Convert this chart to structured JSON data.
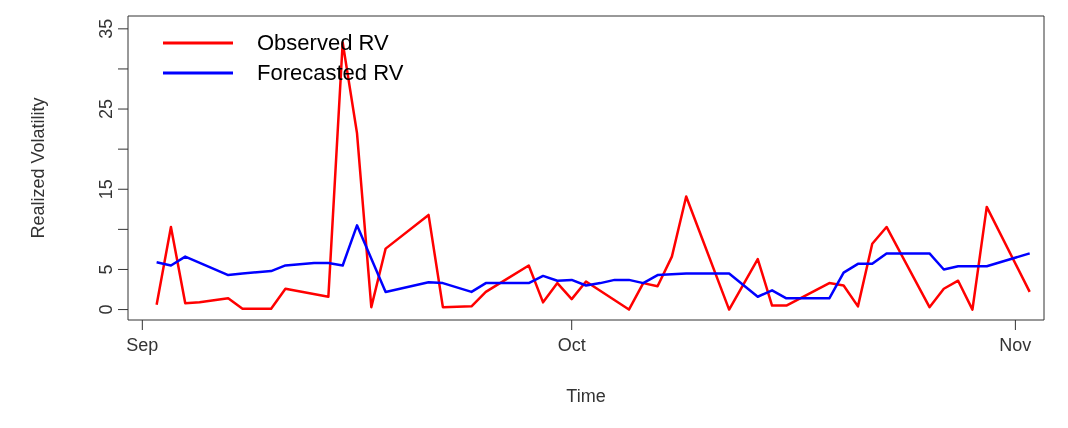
{
  "chart_data": {
    "type": "line",
    "xlabel": "Time",
    "ylabel": "Realized Volatility",
    "xlim": [
      "--08-31",
      "--11-03"
    ],
    "xticks": [
      {
        "value": "--09-01",
        "label": "Sep"
      },
      {
        "value": "--10-01",
        "label": "Oct"
      },
      {
        "value": "--11-01",
        "label": "Nov"
      }
    ],
    "ylim": [
      -1.3,
      36.6
    ],
    "yticks": [
      0,
      5,
      {
        "value": 10,
        "label": null
      },
      15,
      {
        "value": 20,
        "label": null
      },
      25,
      {
        "value": 30,
        "label": null
      },
      35
    ],
    "legend": "top left",
    "grid": false,
    "line_style": "solid",
    "series": [
      {
        "name": "Observed RV",
        "color": "#ff0000",
        "x": [
          "--09-02",
          "--09-03",
          "--09-04",
          "--09-05",
          "--09-07",
          "--09-08",
          "--09-10",
          "--09-11",
          "--09-14",
          "--09-15",
          "--09-16",
          "--09-17",
          "--09-18",
          "--09-21",
          "--09-22",
          "--09-24",
          "--09-25",
          "--09-28",
          "--09-29",
          "--09-30",
          "--10-01",
          "--10-02",
          "--10-05",
          "--10-06",
          "--10-07",
          "--10-08",
          "--10-09",
          "--10-12",
          "--10-14",
          "--10-15",
          "--10-16",
          "--10-19",
          "--10-20",
          "--10-21",
          "--10-22",
          "--10-23",
          "--10-26",
          "--10-27",
          "--10-28",
          "--10-29",
          "--10-30",
          "--11-02"
        ],
        "values": [
          0.6,
          10.3,
          0.8,
          0.9,
          1.4,
          0.1,
          0.1,
          2.6,
          1.6,
          33.3,
          22,
          0.3,
          7.6,
          11.8,
          0.3,
          0.4,
          2.2,
          5.5,
          0.9,
          3.3,
          1.3,
          3.5,
          0,
          3.3,
          2.9,
          6.6,
          14.1,
          0,
          6.3,
          0.5,
          0.5,
          3.3,
          3.0,
          0.4,
          8.2,
          10.3,
          0.3,
          2.6,
          3.6,
          0,
          12.8,
          2.2
        ]
      },
      {
        "name": "Forecasted RV",
        "color": "#0000ff",
        "x": [
          "--09-02",
          "--09-03",
          "--09-04",
          "--09-07",
          "--09-08",
          "--09-10",
          "--09-11",
          "--09-13",
          "--09-14",
          "--09-15",
          "--09-16",
          "--09-18",
          "--09-21",
          "--09-22",
          "--09-24",
          "--09-25",
          "--09-28",
          "--09-29",
          "--09-30",
          "--10-01",
          "--10-02",
          "--10-03",
          "--10-04",
          "--10-05",
          "--10-06",
          "--10-07",
          "--10-09",
          "--10-12",
          "--10-14",
          "--10-15",
          "--10-16",
          "--10-19",
          "--10-20",
          "--10-21",
          "--10-22",
          "--10-23",
          "--10-26",
          "--10-27",
          "--10-28",
          "--10-30",
          "--11-02"
        ],
        "values": [
          5.9,
          5.5,
          6.6,
          4.3,
          4.5,
          4.8,
          5.5,
          5.8,
          5.8,
          5.5,
          10.5,
          2.2,
          3.4,
          3.3,
          2.2,
          3.3,
          3.3,
          4.2,
          3.6,
          3.7,
          3.0,
          3.3,
          3.7,
          3.7,
          3.3,
          4.3,
          4.5,
          4.5,
          1.6,
          2.4,
          1.4,
          1.4,
          4.6,
          5.7,
          5.7,
          7.0,
          7.0,
          5.0,
          5.4,
          5.4,
          7.0
        ]
      }
    ]
  }
}
